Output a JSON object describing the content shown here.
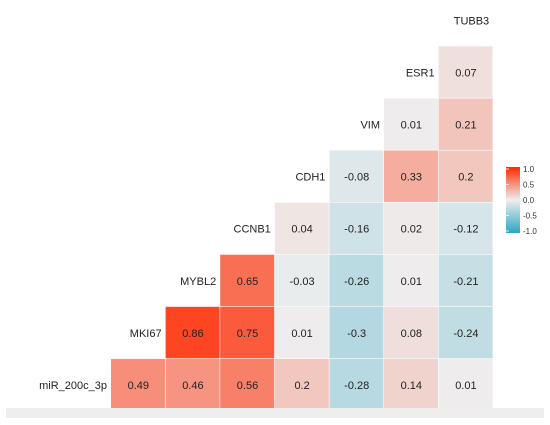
{
  "chart_data": {
    "type": "heatmap",
    "title": "",
    "variables": [
      "miR_200c_3p",
      "MKI67",
      "MYBL2",
      "CCNB1",
      "CDH1",
      "VIM",
      "ESR1",
      "TUBB3"
    ],
    "cells": [
      {
        "row": "miR_200c_3p",
        "col": "miR_200c_3p",
        "value": 0.49
      },
      {
        "row": "miR_200c_3p",
        "col": "MKI67",
        "value": 0.46
      },
      {
        "row": "miR_200c_3p",
        "col": "MYBL2",
        "value": 0.56
      },
      {
        "row": "miR_200c_3p",
        "col": "CCNB1",
        "value": 0.2
      },
      {
        "row": "miR_200c_3p",
        "col": "CDH1",
        "value": -0.28
      },
      {
        "row": "miR_200c_3p",
        "col": "VIM",
        "value": 0.14
      },
      {
        "row": "miR_200c_3p",
        "col": "ESR1",
        "value": 0.01
      },
      {
        "row": "MKI67",
        "col": "MKI67",
        "value": 0.86
      },
      {
        "row": "MKI67",
        "col": "MYBL2",
        "value": 0.75
      },
      {
        "row": "MKI67",
        "col": "CCNB1",
        "value": 0.01
      },
      {
        "row": "MKI67",
        "col": "CDH1",
        "value": -0.3
      },
      {
        "row": "MKI67",
        "col": "VIM",
        "value": 0.08
      },
      {
        "row": "MKI67",
        "col": "ESR1",
        "value": -0.24
      },
      {
        "row": "MYBL2",
        "col": "MYBL2",
        "value": 0.65
      },
      {
        "row": "MYBL2",
        "col": "CCNB1",
        "value": -0.03
      },
      {
        "row": "MYBL2",
        "col": "CDH1",
        "value": -0.26
      },
      {
        "row": "MYBL2",
        "col": "VIM",
        "value": 0.01
      },
      {
        "row": "MYBL2",
        "col": "ESR1",
        "value": -0.21
      },
      {
        "row": "CCNB1",
        "col": "CCNB1",
        "value": 0.04
      },
      {
        "row": "CCNB1",
        "col": "CDH1",
        "value": -0.16
      },
      {
        "row": "CCNB1",
        "col": "VIM",
        "value": 0.02
      },
      {
        "row": "CCNB1",
        "col": "ESR1",
        "value": -0.12
      },
      {
        "row": "CDH1",
        "col": "CDH1",
        "value": -0.08
      },
      {
        "row": "CDH1",
        "col": "VIM",
        "value": 0.33
      },
      {
        "row": "CDH1",
        "col": "ESR1",
        "value": 0.2
      },
      {
        "row": "VIM",
        "col": "VIM",
        "value": 0.01
      },
      {
        "row": "VIM",
        "col": "ESR1",
        "value": 0.21
      },
      {
        "row": "ESR1",
        "col": "ESR1",
        "value": 0.07
      }
    ],
    "color_scale": {
      "low": "#2aa6c2",
      "mid": "#eeeeee",
      "high": "#ff2a00",
      "range": [
        -1,
        1
      ],
      "ticks": [
        "1.0",
        "0.5",
        "0.0",
        "-0.5",
        "-1.0"
      ]
    },
    "legend_position": "right"
  }
}
